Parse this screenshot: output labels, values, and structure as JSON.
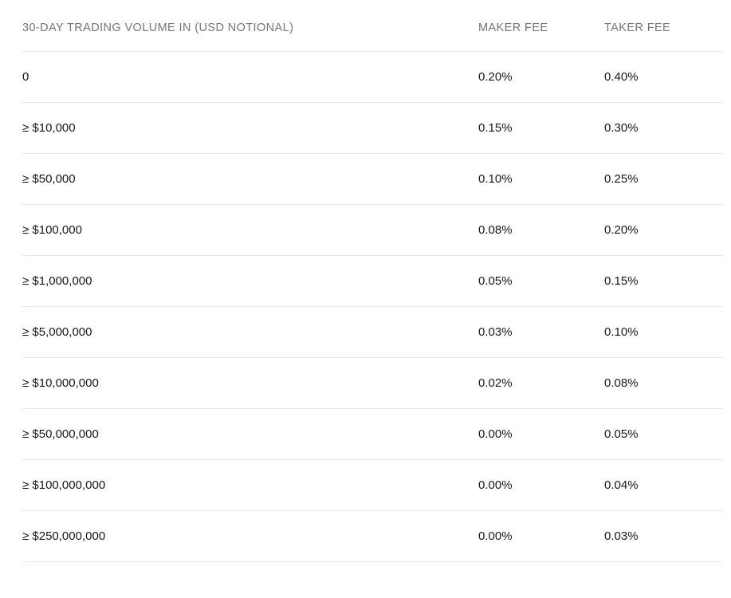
{
  "colors": {
    "background": "#ffffff",
    "header_text": "#75757a",
    "body_text": "#17171c",
    "divider": "#e8e8e8"
  },
  "table": {
    "columns": {
      "volume": "30-DAY TRADING VOLUME IN (USD NOTIONAL)",
      "maker": "MAKER FEE",
      "taker": "TAKER FEE"
    },
    "rows": [
      {
        "volume": "0",
        "maker": "0.20%",
        "taker": "0.40%"
      },
      {
        "volume": "≥ $10,000",
        "maker": "0.15%",
        "taker": "0.30%"
      },
      {
        "volume": "≥ $50,000",
        "maker": "0.10%",
        "taker": "0.25%"
      },
      {
        "volume": "≥ $100,000",
        "maker": "0.08%",
        "taker": "0.20%"
      },
      {
        "volume": "≥ $1,000,000",
        "maker": "0.05%",
        "taker": "0.15%"
      },
      {
        "volume": "≥ $5,000,000",
        "maker": "0.03%",
        "taker": "0.10%"
      },
      {
        "volume": "≥ $10,000,000",
        "maker": "0.02%",
        "taker": "0.08%"
      },
      {
        "volume": "≥ $50,000,000",
        "maker": "0.00%",
        "taker": "0.05%"
      },
      {
        "volume": "≥ $100,000,000",
        "maker": "0.00%",
        "taker": "0.04%"
      },
      {
        "volume": "≥ $250,000,000",
        "maker": "0.00%",
        "taker": "0.03%"
      }
    ]
  }
}
